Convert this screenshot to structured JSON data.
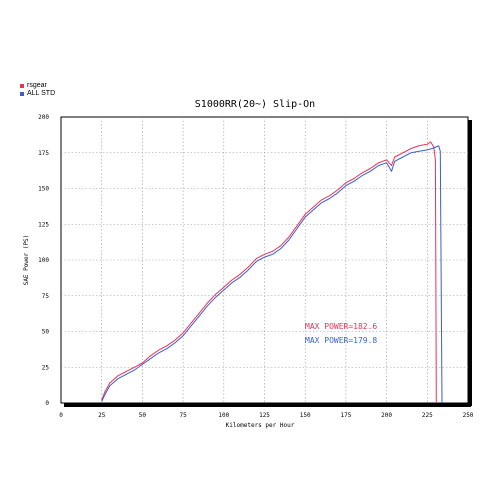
{
  "chart_data": {
    "type": "line",
    "title": "S1000RR(20~) Slip-On",
    "xlabel": "Kilometers per Hour",
    "ylabel": "SAE Power (PS)",
    "xlim": [
      0,
      250
    ],
    "ylim": [
      0,
      200
    ],
    "xticks": [
      0,
      25,
      50,
      75,
      100,
      125,
      150,
      175,
      200,
      225,
      250
    ],
    "yticks": [
      0,
      25,
      50,
      75,
      100,
      125,
      150,
      175,
      200
    ],
    "xtick_labels": [
      "0",
      "25",
      "50",
      "75",
      "100",
      "125",
      "150",
      "175",
      "200",
      "225",
      "250"
    ],
    "ytick_labels": [
      "0",
      "25",
      "50",
      "75",
      "100",
      "125",
      "150",
      "175",
      "200"
    ],
    "grid": true,
    "legend_position": "top-left",
    "series": [
      {
        "name": "rsgear",
        "color": "#e8325a",
        "x": [
          25,
          27,
          30,
          35,
          40,
          45,
          50,
          55,
          60,
          65,
          70,
          75,
          80,
          85,
          90,
          95,
          100,
          105,
          110,
          115,
          120,
          125,
          130,
          135,
          140,
          145,
          150,
          155,
          160,
          165,
          170,
          175,
          180,
          185,
          190,
          195,
          200,
          203,
          205,
          210,
          215,
          220,
          225,
          227,
          229,
          230,
          230.5
        ],
        "y": [
          2,
          8,
          14,
          19,
          22,
          25,
          28,
          33,
          37,
          40,
          44,
          49,
          56,
          63,
          70,
          76,
          81,
          86,
          90,
          95,
          101,
          104,
          106,
          110,
          116,
          124,
          132,
          137,
          142,
          145,
          149,
          154,
          157,
          161,
          164,
          168,
          170,
          166,
          172,
          175,
          178,
          180,
          181,
          182.6,
          179,
          170,
          0
        ]
      },
      {
        "name": "ALL STD",
        "color": "#3a5fd0",
        "x": [
          25,
          27,
          30,
          35,
          40,
          45,
          50,
          55,
          60,
          65,
          70,
          75,
          80,
          85,
          90,
          95,
          100,
          105,
          110,
          115,
          120,
          125,
          130,
          135,
          140,
          145,
          150,
          155,
          160,
          165,
          170,
          175,
          180,
          185,
          190,
          195,
          200,
          203,
          205,
          210,
          215,
          220,
          225,
          228,
          232,
          233,
          234
        ],
        "y": [
          1,
          6,
          12,
          17,
          20,
          23,
          27,
          31,
          35,
          38,
          42,
          47,
          54,
          61,
          68,
          74,
          79,
          84,
          88,
          93,
          99,
          102,
          104,
          108,
          114,
          122,
          130,
          135,
          140,
          143,
          147,
          152,
          155,
          159,
          162,
          166,
          168,
          162,
          169,
          172,
          175,
          176,
          177,
          178,
          179.8,
          176,
          0
        ]
      }
    ],
    "annotations": [
      "MAX POWER=182.6",
      "MAX POWER=179.8"
    ]
  }
}
